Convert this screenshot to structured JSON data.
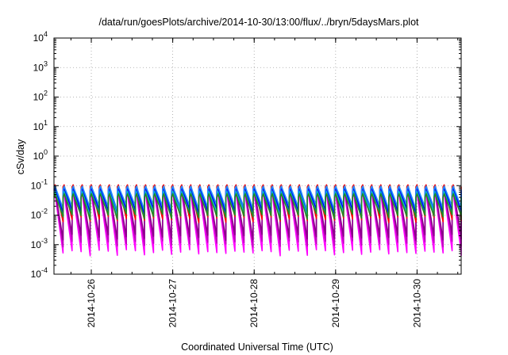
{
  "chart_data": {
    "type": "line",
    "title": "/data/run/goesPlots/archive/2014-10-30/13:00/flux/../bryn/5daysMars.plot",
    "xlabel": "Coordinated Universal Time (UTC)",
    "ylabel": "cSv/day",
    "yscale": "log",
    "ylim": [
      0.0001,
      10000
    ],
    "y_ticks": [
      {
        "base": "10",
        "exp": "-4",
        "value": 0.0001
      },
      {
        "base": "10",
        "exp": "-3",
        "value": 0.001
      },
      {
        "base": "10",
        "exp": "-2",
        "value": 0.01
      },
      {
        "base": "10",
        "exp": "-1",
        "value": 0.1
      },
      {
        "base": "10",
        "exp": "0",
        "value": 1
      },
      {
        "base": "10",
        "exp": "1",
        "value": 10
      },
      {
        "base": "10",
        "exp": "2",
        "value": 100
      },
      {
        "base": "10",
        "exp": "3",
        "value": 1000
      },
      {
        "base": "10",
        "exp": "4",
        "value": 10000
      }
    ],
    "xlim": [
      "2014-10-25T13:00",
      "2014-10-30T13:00"
    ],
    "x_ticks": [
      {
        "label": "2014-10-26",
        "value": "2014-10-26T00:00"
      },
      {
        "label": "2014-10-27",
        "value": "2014-10-27T00:00"
      },
      {
        "label": "2014-10-28",
        "value": "2014-10-28T00:00"
      },
      {
        "label": "2014-10-29",
        "value": "2014-10-29T00:00"
      },
      {
        "label": "2014-10-30",
        "value": "2014-10-30T00:00"
      }
    ],
    "grid": true,
    "pattern": {
      "type": "sawtooth",
      "cycles": 45,
      "description_free": true
    },
    "series": [
      {
        "color": "#ff00ff",
        "peak": 0.05,
        "trough": 0.0006
      },
      {
        "color": "#c000c0",
        "peak": 0.06,
        "trough": 0.0012
      },
      {
        "color": "#8b008b",
        "peak": 0.07,
        "trough": 0.002
      },
      {
        "color": "#ff0000",
        "peak": 0.1,
        "trough": 0.008
      },
      {
        "color": "#00c0c0",
        "peak": 0.06,
        "trough": 0.012
      },
      {
        "color": "#0000ff",
        "peak": 0.08,
        "trough": 0.015
      },
      {
        "color": "#1e90ff",
        "peak": 0.09,
        "trough": 0.02
      },
      {
        "color": "#228b22",
        "peak": 0.05,
        "trough": 0.01
      }
    ]
  }
}
